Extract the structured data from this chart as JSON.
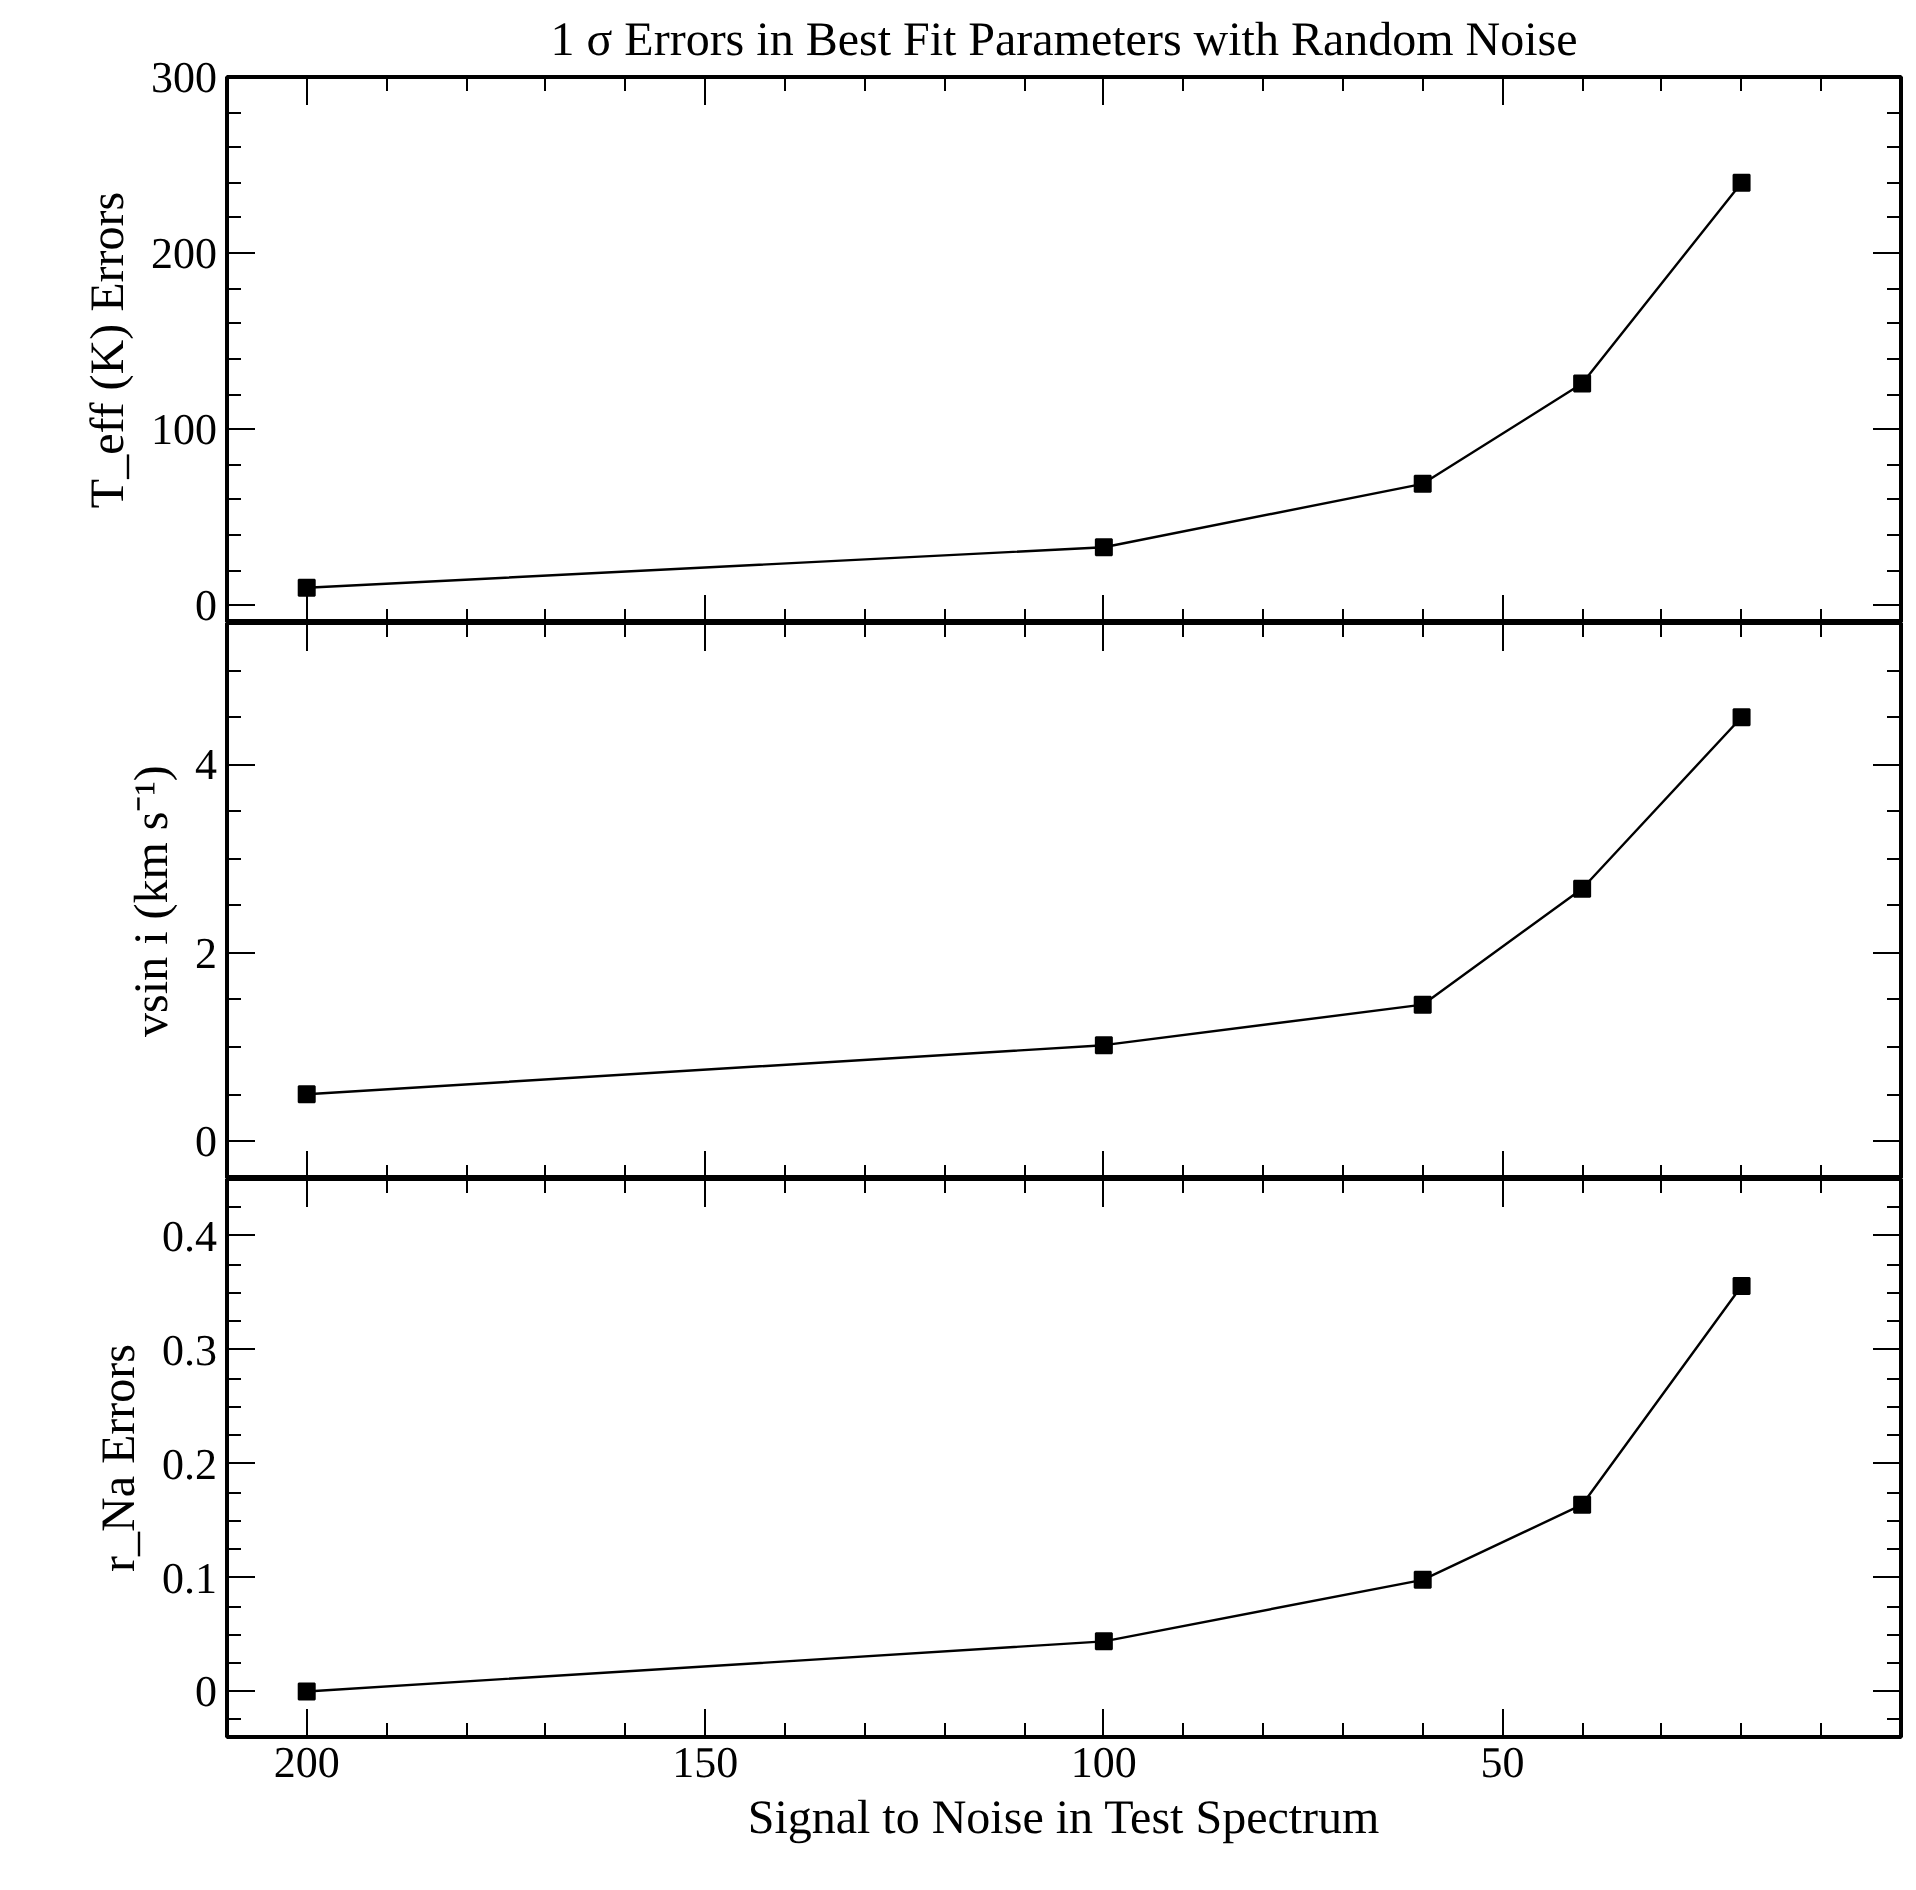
{
  "chart_data": [
    {
      "type": "line",
      "title": "1 σ Errors in Best Fit Parameters with Random Noise",
      "ylabel": "T_eff (K) Errors",
      "marker": "square",
      "line_style": "solid",
      "tick_labels": "y",
      "grid": false,
      "x": [
        200,
        100,
        60,
        40,
        20
      ],
      "series": [
        {
          "color": "#000000",
          "values": [
            10,
            33,
            69,
            126,
            240
          ]
        }
      ],
      "xlim": [
        210,
        0
      ],
      "xticks": [
        {
          "value": 10,
          "label": null
        },
        {
          "value": 20,
          "label": null
        },
        {
          "value": 30,
          "label": null
        },
        {
          "value": 40,
          "label": null
        },
        50,
        {
          "value": 60,
          "label": null
        },
        {
          "value": 70,
          "label": null
        },
        {
          "value": 80,
          "label": null
        },
        {
          "value": 90,
          "label": null
        },
        100,
        {
          "value": 110,
          "label": null
        },
        {
          "value": 120,
          "label": null
        },
        {
          "value": 130,
          "label": null
        },
        {
          "value": 140,
          "label": null
        },
        150,
        {
          "value": 160,
          "label": null
        },
        {
          "value": 170,
          "label": null
        },
        {
          "value": 180,
          "label": null
        },
        {
          "value": 190,
          "label": null
        },
        200
      ],
      "ylim": [
        -10,
        300
      ],
      "yticks": [
        0,
        {
          "value": 20,
          "label": null
        },
        {
          "value": 40,
          "label": null
        },
        {
          "value": 60,
          "label": null
        },
        {
          "value": 80,
          "label": null
        },
        100,
        {
          "value": 120,
          "label": null
        },
        {
          "value": 140,
          "label": null
        },
        {
          "value": 160,
          "label": null
        },
        {
          "value": 180,
          "label": null
        },
        200,
        {
          "value": 220,
          "label": null
        },
        {
          "value": 240,
          "label": null
        },
        {
          "value": 260,
          "label": null
        },
        {
          "value": 280,
          "label": null
        },
        300
      ]
    },
    {
      "type": "line",
      "ylabel": "vsin i (km s⁻¹)",
      "marker": "square",
      "line_style": "solid",
      "tick_labels": "y",
      "grid": false,
      "x": [
        200,
        100,
        60,
        40,
        20
      ],
      "series": [
        {
          "color": "#000000",
          "values": [
            0.5,
            1.02,
            1.45,
            2.68,
            4.5
          ]
        }
      ],
      "xlim": [
        210,
        0
      ],
      "xticks": [
        {
          "value": 10,
          "label": null
        },
        {
          "value": 20,
          "label": null
        },
        {
          "value": 30,
          "label": null
        },
        {
          "value": 40,
          "label": null
        },
        50,
        {
          "value": 60,
          "label": null
        },
        {
          "value": 70,
          "label": null
        },
        {
          "value": 80,
          "label": null
        },
        {
          "value": 90,
          "label": null
        },
        100,
        {
          "value": 110,
          "label": null
        },
        {
          "value": 120,
          "label": null
        },
        {
          "value": 130,
          "label": null
        },
        {
          "value": 140,
          "label": null
        },
        150,
        {
          "value": 160,
          "label": null
        },
        {
          "value": 170,
          "label": null
        },
        {
          "value": 180,
          "label": null
        },
        {
          "value": 190,
          "label": null
        },
        200
      ],
      "ylim": [
        -0.4,
        5.5
      ],
      "yticks": [
        0,
        {
          "value": 0.5,
          "label": null
        },
        {
          "value": 1,
          "label": null
        },
        {
          "value": 1.5,
          "label": null
        },
        2,
        {
          "value": 2.5,
          "label": null
        },
        {
          "value": 3,
          "label": null
        },
        {
          "value": 3.5,
          "label": null
        },
        4,
        {
          "value": 4.5,
          "label": null
        },
        {
          "value": 5,
          "label": null
        }
      ]
    },
    {
      "type": "line",
      "ylabel": "r_Na Errors",
      "xlabel": "Signal to Noise in Test Spectrum",
      "marker": "square",
      "line_style": "solid",
      "grid": false,
      "x": [
        200,
        100,
        60,
        40,
        20
      ],
      "series": [
        {
          "color": "#000000",
          "values": [
            0,
            0.044,
            0.098,
            0.164,
            0.356
          ]
        }
      ],
      "xlim": [
        210,
        0
      ],
      "xticks": [
        {
          "value": 10,
          "label": null
        },
        {
          "value": 20,
          "label": null
        },
        {
          "value": 30,
          "label": null
        },
        {
          "value": 40,
          "label": null
        },
        {
          "value": 50,
          "label": "50"
        },
        {
          "value": 60,
          "label": null
        },
        {
          "value": 70,
          "label": null
        },
        {
          "value": 80,
          "label": null
        },
        {
          "value": 90,
          "label": null
        },
        {
          "value": 100,
          "label": "100"
        },
        {
          "value": 110,
          "label": null
        },
        {
          "value": 120,
          "label": null
        },
        {
          "value": 130,
          "label": null
        },
        {
          "value": 140,
          "label": null
        },
        {
          "value": 150,
          "label": "150"
        },
        {
          "value": 160,
          "label": null
        },
        {
          "value": 170,
          "label": null
        },
        {
          "value": 180,
          "label": null
        },
        {
          "value": 190,
          "label": null
        },
        {
          "value": 200,
          "label": "200"
        }
      ],
      "ylim": [
        -0.04,
        0.45
      ],
      "yticks": [
        {
          "value": -0.025,
          "label": null
        },
        0,
        {
          "value": 0.025,
          "label": null
        },
        {
          "value": 0.05,
          "label": null
        },
        {
          "value": 0.075,
          "label": null
        },
        {
          "value": 0.1,
          "label": "0.1"
        },
        {
          "value": 0.125,
          "label": null
        },
        {
          "value": 0.15,
          "label": null
        },
        {
          "value": 0.175,
          "label": null
        },
        {
          "value": 0.2,
          "label": "0.2"
        },
        {
          "value": 0.225,
          "label": null
        },
        {
          "value": 0.25,
          "label": null
        },
        {
          "value": 0.275,
          "label": null
        },
        {
          "value": 0.3,
          "label": "0.3"
        },
        {
          "value": 0.325,
          "label": null
        },
        {
          "value": 0.35,
          "label": null
        },
        {
          "value": 0.375,
          "label": null
        },
        {
          "value": 0.4,
          "label": "0.4"
        },
        {
          "value": 0.425,
          "label": null
        }
      ]
    }
  ]
}
